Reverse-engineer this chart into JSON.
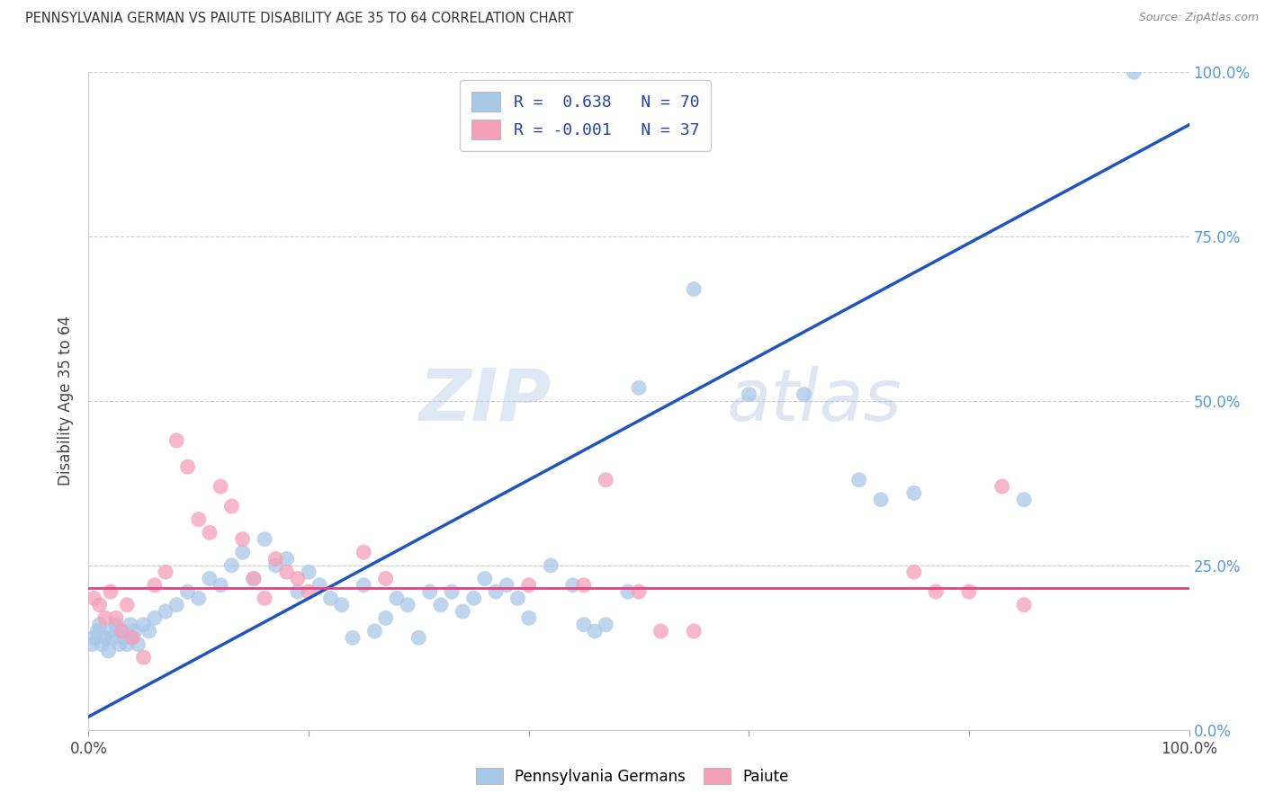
{
  "title": "PENNSYLVANIA GERMAN VS PAIUTE DISABILITY AGE 35 TO 64 CORRELATION CHART",
  "source": "Source: ZipAtlas.com",
  "ylabel": "Disability Age 35 to 64",
  "xlim": [
    0,
    100
  ],
  "ylim": [
    0,
    100
  ],
  "blue_R": "0.638",
  "blue_N": "70",
  "pink_R": "-0.001",
  "pink_N": "37",
  "blue_color": "#a8c8e8",
  "pink_color": "#f4a0b8",
  "blue_line_color": "#2255bb",
  "pink_line_color": "#e84080",
  "background_color": "#ffffff",
  "watermark_zip": "ZIP",
  "watermark_atlas": "atlas",
  "legend_blue_label": "Pennsylvania Germans",
  "legend_pink_label": "Paiute",
  "ytick_color": "#5599dd",
  "xtick_label_color": "#444444",
  "blue_points": [
    [
      0.3,
      13
    ],
    [
      0.5,
      14
    ],
    [
      0.8,
      15
    ],
    [
      1.0,
      16
    ],
    [
      1.2,
      13
    ],
    [
      1.5,
      14
    ],
    [
      1.8,
      12
    ],
    [
      2.0,
      15
    ],
    [
      2.2,
      14
    ],
    [
      2.5,
      16
    ],
    [
      2.8,
      13
    ],
    [
      3.0,
      15
    ],
    [
      3.2,
      14
    ],
    [
      3.5,
      13
    ],
    [
      3.8,
      16
    ],
    [
      4.0,
      14
    ],
    [
      4.2,
      15
    ],
    [
      4.5,
      13
    ],
    [
      5.0,
      16
    ],
    [
      5.5,
      15
    ],
    [
      6.0,
      17
    ],
    [
      7.0,
      18
    ],
    [
      8.0,
      19
    ],
    [
      9.0,
      21
    ],
    [
      10.0,
      20
    ],
    [
      11.0,
      23
    ],
    [
      12.0,
      22
    ],
    [
      13.0,
      25
    ],
    [
      14.0,
      27
    ],
    [
      15.0,
      23
    ],
    [
      16.0,
      29
    ],
    [
      17.0,
      25
    ],
    [
      18.0,
      26
    ],
    [
      19.0,
      21
    ],
    [
      20.0,
      24
    ],
    [
      21.0,
      22
    ],
    [
      22.0,
      20
    ],
    [
      23.0,
      19
    ],
    [
      24.0,
      14
    ],
    [
      25.0,
      22
    ],
    [
      26.0,
      15
    ],
    [
      27.0,
      17
    ],
    [
      28.0,
      20
    ],
    [
      29.0,
      19
    ],
    [
      30.0,
      14
    ],
    [
      31.0,
      21
    ],
    [
      32.0,
      19
    ],
    [
      33.0,
      21
    ],
    [
      34.0,
      18
    ],
    [
      35.0,
      20
    ],
    [
      36.0,
      23
    ],
    [
      37.0,
      21
    ],
    [
      38.0,
      22
    ],
    [
      39.0,
      20
    ],
    [
      40.0,
      17
    ],
    [
      42.0,
      25
    ],
    [
      44.0,
      22
    ],
    [
      45.0,
      16
    ],
    [
      46.0,
      15
    ],
    [
      47.0,
      16
    ],
    [
      49.0,
      21
    ],
    [
      50.0,
      52
    ],
    [
      55.0,
      67
    ],
    [
      60.0,
      51
    ],
    [
      65.0,
      51
    ],
    [
      70.0,
      38
    ],
    [
      72.0,
      35
    ],
    [
      75.0,
      36
    ],
    [
      85.0,
      35
    ],
    [
      95.0,
      100
    ]
  ],
  "pink_points": [
    [
      0.5,
      20
    ],
    [
      1.0,
      19
    ],
    [
      1.5,
      17
    ],
    [
      2.0,
      21
    ],
    [
      2.5,
      17
    ],
    [
      3.0,
      15
    ],
    [
      3.5,
      19
    ],
    [
      4.0,
      14
    ],
    [
      5.0,
      11
    ],
    [
      6.0,
      22
    ],
    [
      7.0,
      24
    ],
    [
      8.0,
      44
    ],
    [
      9.0,
      40
    ],
    [
      10.0,
      32
    ],
    [
      11.0,
      30
    ],
    [
      12.0,
      37
    ],
    [
      13.0,
      34
    ],
    [
      14.0,
      29
    ],
    [
      15.0,
      23
    ],
    [
      16.0,
      20
    ],
    [
      17.0,
      26
    ],
    [
      18.0,
      24
    ],
    [
      19.0,
      23
    ],
    [
      20.0,
      21
    ],
    [
      25.0,
      27
    ],
    [
      27.0,
      23
    ],
    [
      40.0,
      22
    ],
    [
      45.0,
      22
    ],
    [
      47.0,
      38
    ],
    [
      50.0,
      21
    ],
    [
      52.0,
      15
    ],
    [
      55.0,
      15
    ],
    [
      75.0,
      24
    ],
    [
      77.0,
      21
    ],
    [
      80.0,
      21
    ],
    [
      83.0,
      37
    ],
    [
      85.0,
      19
    ]
  ],
  "blue_trendline_x": [
    0,
    100
  ],
  "blue_trendline_y": [
    2,
    92
  ],
  "pink_trendline_x": [
    0,
    100
  ],
  "pink_trendline_y": [
    21.5,
    21.5
  ],
  "yticks": [
    0,
    25,
    50,
    75,
    100
  ],
  "xticks": [
    0,
    20,
    40,
    60,
    80,
    100
  ],
  "grid_color": "#cccccc",
  "grid_style": "--"
}
